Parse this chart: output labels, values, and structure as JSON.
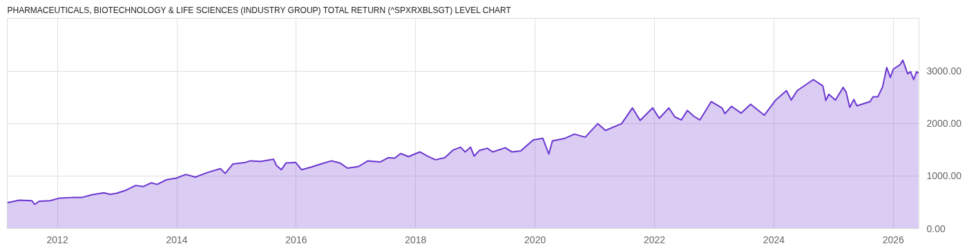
{
  "chart_data": {
    "type": "area",
    "title": "PHARMACEUTICALS, BIOTECHNOLOGY & LIFE SCIENCES (INDUSTRY GROUP) TOTAL RETURN (^SPXRXBLSGT) LEVEL CHART",
    "x": [
      2011.16,
      2011.36,
      2011.57,
      2011.62,
      2011.7,
      2011.88,
      2012.04,
      2012.25,
      2012.41,
      2012.57,
      2012.78,
      2012.88,
      2012.99,
      2013.15,
      2013.31,
      2013.44,
      2013.57,
      2013.67,
      2013.83,
      2013.99,
      2014.15,
      2014.31,
      2014.52,
      2014.73,
      2014.81,
      2014.94,
      2015.15,
      2015.23,
      2015.41,
      2015.62,
      2015.67,
      2015.75,
      2015.83,
      2015.99,
      2016.09,
      2016.25,
      2016.41,
      2016.59,
      2016.73,
      2016.86,
      2017.04,
      2017.2,
      2017.41,
      2017.54,
      2017.65,
      2017.75,
      2017.88,
      2018.07,
      2018.2,
      2018.33,
      2018.49,
      2018.62,
      2018.75,
      2018.83,
      2018.92,
      2018.98,
      2019.07,
      2019.2,
      2019.29,
      2019.5,
      2019.61,
      2019.76,
      2019.97,
      2020.13,
      2020.23,
      2020.29,
      2020.5,
      2020.66,
      2020.84,
      2021.05,
      2021.18,
      2021.45,
      2021.63,
      2021.76,
      2021.97,
      2022.08,
      2022.24,
      2022.34,
      2022.45,
      2022.55,
      2022.66,
      2022.76,
      2022.95,
      2023.13,
      2023.18,
      2023.29,
      2023.45,
      2023.61,
      2023.84,
      2024.03,
      2024.21,
      2024.29,
      2024.39,
      2024.66,
      2024.82,
      2024.87,
      2024.92,
      2025.03,
      2025.16,
      2025.21,
      2025.27,
      2025.34,
      2025.39,
      2025.61,
      2025.66,
      2025.74,
      2025.82,
      2025.89,
      2025.95,
      2026.0,
      2026.11,
      2026.16,
      2026.24,
      2026.29,
      2026.34,
      2026.39,
      2026.42
    ],
    "series": [
      {
        "color": "#6a35d0",
        "values": [
          490,
          540,
          530,
          460,
          520,
          530,
          580,
          590,
          590,
          640,
          680,
          650,
          670,
          730,
          820,
          800,
          870,
          840,
          930,
          960,
          1030,
          980,
          1070,
          1140,
          1050,
          1230,
          1260,
          1290,
          1280,
          1320,
          1200,
          1120,
          1250,
          1260,
          1120,
          1170,
          1230,
          1290,
          1250,
          1150,
          1180,
          1290,
          1270,
          1350,
          1340,
          1430,
          1370,
          1460,
          1380,
          1310,
          1350,
          1490,
          1550,
          1460,
          1550,
          1380,
          1490,
          1530,
          1460,
          1540,
          1460,
          1480,
          1690,
          1720,
          1420,
          1670,
          1720,
          1800,
          1740,
          2000,
          1870,
          2000,
          2300,
          2060,
          2300,
          2100,
          2300,
          2130,
          2070,
          2250,
          2140,
          2070,
          2420,
          2300,
          2190,
          2330,
          2200,
          2370,
          2160,
          2450,
          2630,
          2450,
          2630,
          2840,
          2720,
          2440,
          2560,
          2450,
          2690,
          2600,
          2310,
          2460,
          2340,
          2420,
          2510,
          2510,
          2700,
          3070,
          2880,
          3040,
          3120,
          3210,
          2950,
          2990,
          2840,
          2990,
          2960
        ]
      }
    ],
    "xlim": [
      2011.16,
      2026.43
    ],
    "ylim": [
      0,
      4010
    ],
    "xticks": [
      2012,
      2014,
      2016,
      2018,
      2020,
      2022,
      2024,
      2026
    ],
    "yticks": [
      {
        "value": 0,
        "label": "0.00"
      },
      {
        "value": 1000,
        "label": "1000.00"
      },
      {
        "value": 2000,
        "label": "2000.00"
      },
      {
        "value": 3000,
        "label": "3000.00"
      }
    ],
    "grid": true
  }
}
